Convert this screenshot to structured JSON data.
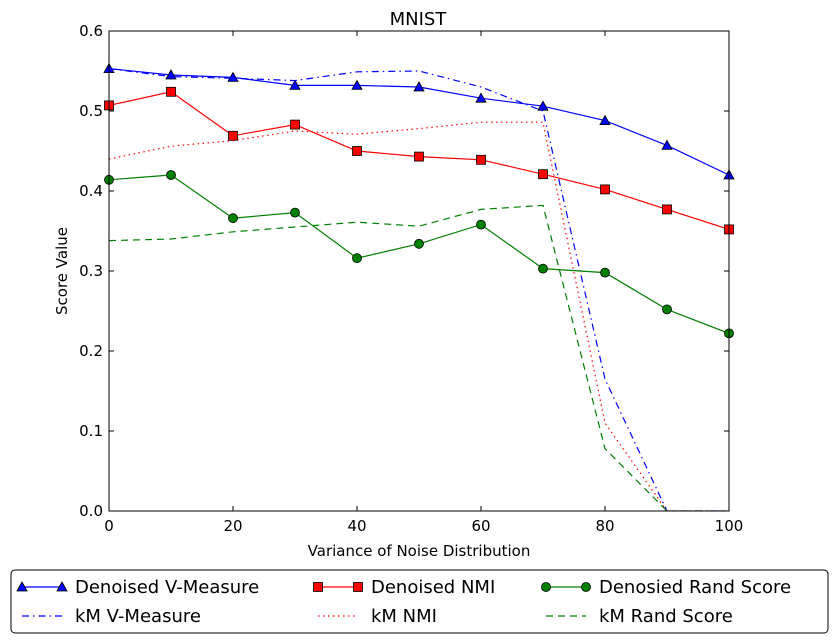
{
  "chart_data": {
    "type": "line",
    "title": "MNIST",
    "xlabel": "Variance of Noise Distribution",
    "ylabel": "Score Value",
    "xlim": [
      0,
      100
    ],
    "ylim": [
      0.0,
      0.6
    ],
    "xticks": [
      0,
      20,
      40,
      60,
      80,
      100
    ],
    "yticks": [
      0.0,
      0.1,
      0.2,
      0.3,
      0.4,
      0.5,
      0.6
    ],
    "xtick_labels": [
      "0",
      "20",
      "40",
      "60",
      "80",
      "100"
    ],
    "ytick_labels": [
      "0.0",
      "0.1",
      "0.2",
      "0.3",
      "0.4",
      "0.5",
      "0.6"
    ],
    "grid": false,
    "legend_position": "bottom",
    "series": [
      {
        "name": "Denoised V-Measure",
        "color": "#0000ff",
        "style": "solid",
        "marker": "triangle",
        "x": [
          0,
          10,
          20,
          30,
          40,
          50,
          60,
          70,
          80,
          90,
          100
        ],
        "y": [
          0.553,
          0.545,
          0.542,
          0.532,
          0.532,
          0.53,
          0.516,
          0.506,
          0.488,
          0.457,
          0.42
        ]
      },
      {
        "name": "kM V-Measure",
        "color": "#0000ff",
        "style": "dashdot",
        "marker": "none",
        "x": [
          0,
          10,
          20,
          30,
          40,
          50,
          60,
          70,
          80,
          90,
          100
        ],
        "y": [
          0.553,
          0.543,
          0.541,
          0.538,
          0.549,
          0.55,
          0.53,
          0.5,
          0.165,
          0.0,
          0.0
        ]
      },
      {
        "name": "Denoised NMI",
        "color": "#ff0000",
        "style": "solid",
        "marker": "square",
        "x": [
          0,
          10,
          20,
          30,
          40,
          50,
          60,
          70,
          80,
          90,
          100
        ],
        "y": [
          0.507,
          0.524,
          0.469,
          0.483,
          0.45,
          0.443,
          0.439,
          0.421,
          0.402,
          0.377,
          0.352
        ]
      },
      {
        "name": "kM NMI",
        "color": "#ff0000",
        "style": "dotted",
        "marker": "none",
        "x": [
          0,
          10,
          20,
          30,
          40,
          50,
          60,
          70,
          80,
          90,
          100
        ],
        "y": [
          0.44,
          0.456,
          0.463,
          0.475,
          0.471,
          0.478,
          0.486,
          0.486,
          0.11,
          0.0,
          0.0
        ]
      },
      {
        "name": "Denosied Rand Score",
        "color": "#008000",
        "style": "solid",
        "marker": "circle",
        "x": [
          0,
          10,
          20,
          30,
          40,
          50,
          60,
          70,
          80,
          90,
          100
        ],
        "y": [
          0.414,
          0.42,
          0.366,
          0.373,
          0.316,
          0.334,
          0.358,
          0.303,
          0.298,
          0.252,
          0.222
        ]
      },
      {
        "name": "kM Rand Score",
        "color": "#008000",
        "style": "dashed",
        "marker": "none",
        "x": [
          0,
          10,
          20,
          30,
          40,
          50,
          60,
          70,
          80,
          90,
          100
        ],
        "y": [
          0.338,
          0.34,
          0.349,
          0.355,
          0.361,
          0.356,
          0.377,
          0.382,
          0.078,
          0.0,
          0.0
        ]
      }
    ]
  }
}
